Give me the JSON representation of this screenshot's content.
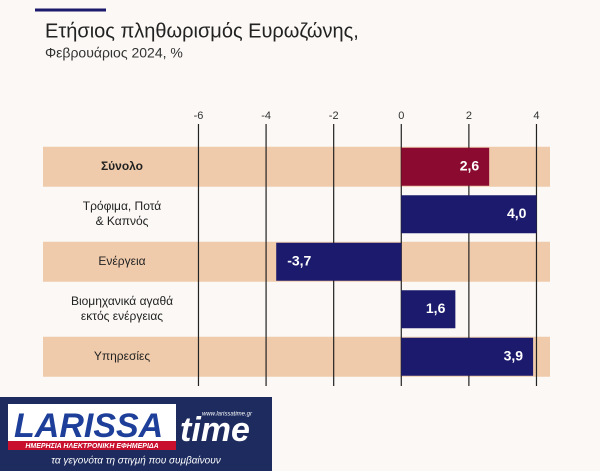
{
  "chart_data": {
    "type": "hbar",
    "title": "Ετήσιος πληθωρισμός Ευρωζώνης,",
    "subtitle": "Φεβρουάριος 2024, %",
    "categories": [
      [
        "Σύνολο"
      ],
      [
        "Τρόφιμα, Ποτά",
        "& Καπνός"
      ],
      [
        "Ενέργεια"
      ],
      [
        "Βιομηχανικά αγαθά",
        "εκτός ενέργειας"
      ],
      [
        "Υπηρεσίες"
      ]
    ],
    "values": [
      2.6,
      4.0,
      -3.7,
      1.6,
      3.9
    ],
    "value_labels": [
      "2,6",
      "4,0",
      "-3,7",
      "1,6",
      "3,9"
    ],
    "colors": [
      "#8a0b2f",
      "#1b1a6c",
      "#1b1a6c",
      "#1b1a6c",
      "#1b1a6c"
    ],
    "band_color": "#f0cbab",
    "xlim": [
      -10.6,
      4.4
    ],
    "xticks": [
      -6,
      -4,
      -2,
      0,
      2,
      4
    ],
    "grid": true
  },
  "logo": {
    "name_left": "LARISSA",
    "name_right": "time",
    "url": "www.larissatime.gr",
    "tagline": "ΗΜΕΡΗΣΙΑ ΗΛΕΚΤΡΟΝΙΚΗ ΕΦΗΜΕΡΙΔΑ",
    "slogan": "τα γεγονότα τη στιγμή που συμβαίνουν"
  }
}
